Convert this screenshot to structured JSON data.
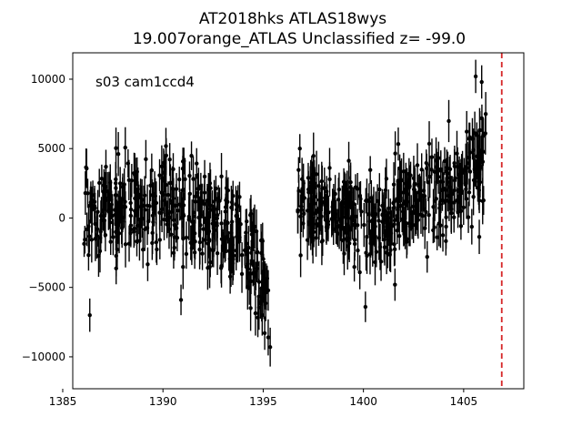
{
  "chart_data": {
    "type": "scatter",
    "title_line1": "AT2018hks  ATLAS18wys",
    "title_line2": "19.007orange_ATLAS Unclassified z= -99.0",
    "annotation": "s03 cam1ccd4",
    "xlabel": "",
    "ylabel": "",
    "xlim": [
      1385.5,
      1408.0
    ],
    "ylim": [
      -12300,
      11900
    ],
    "x_ticks": [
      1385,
      1390,
      1395,
      1400,
      1405
    ],
    "y_ticks": [
      -10000,
      -5000,
      0,
      5000,
      10000
    ],
    "marker_color": "#000000",
    "vline": {
      "x": 1406.9,
      "color": "#d62728",
      "style": "dashed"
    },
    "segments": [
      {
        "x_start": 1386.05,
        "x_end": 1395.3,
        "n": 420,
        "trend": [
          [
            1386,
            200
          ],
          [
            1390,
            900
          ],
          [
            1392,
            300
          ],
          [
            1394,
            -1800
          ],
          [
            1395.3,
            -5000
          ]
        ],
        "scatter": 1700,
        "err": 1300
      },
      {
        "x_start": 1396.7,
        "x_end": 1406.2,
        "n": 430,
        "trend": [
          [
            1396.7,
            1200
          ],
          [
            1399,
            500
          ],
          [
            1401,
            -400
          ],
          [
            1403,
            1500
          ],
          [
            1405,
            2600
          ],
          [
            1406.2,
            4200
          ]
        ],
        "scatter": 1800,
        "err": 1300
      }
    ],
    "outliers": [
      {
        "x": 1386.35,
        "y": -7000,
        "err": 1200
      },
      {
        "x": 1390.9,
        "y": -5900,
        "err": 1100
      },
      {
        "x": 1395.25,
        "y": -8600,
        "err": 1300
      },
      {
        "x": 1395.35,
        "y": -9300,
        "err": 1400
      },
      {
        "x": 1400.1,
        "y": -6400,
        "err": 1100
      },
      {
        "x": 1405.6,
        "y": 10200,
        "err": 1200
      },
      {
        "x": 1405.9,
        "y": 9800,
        "err": 1200
      }
    ]
  }
}
